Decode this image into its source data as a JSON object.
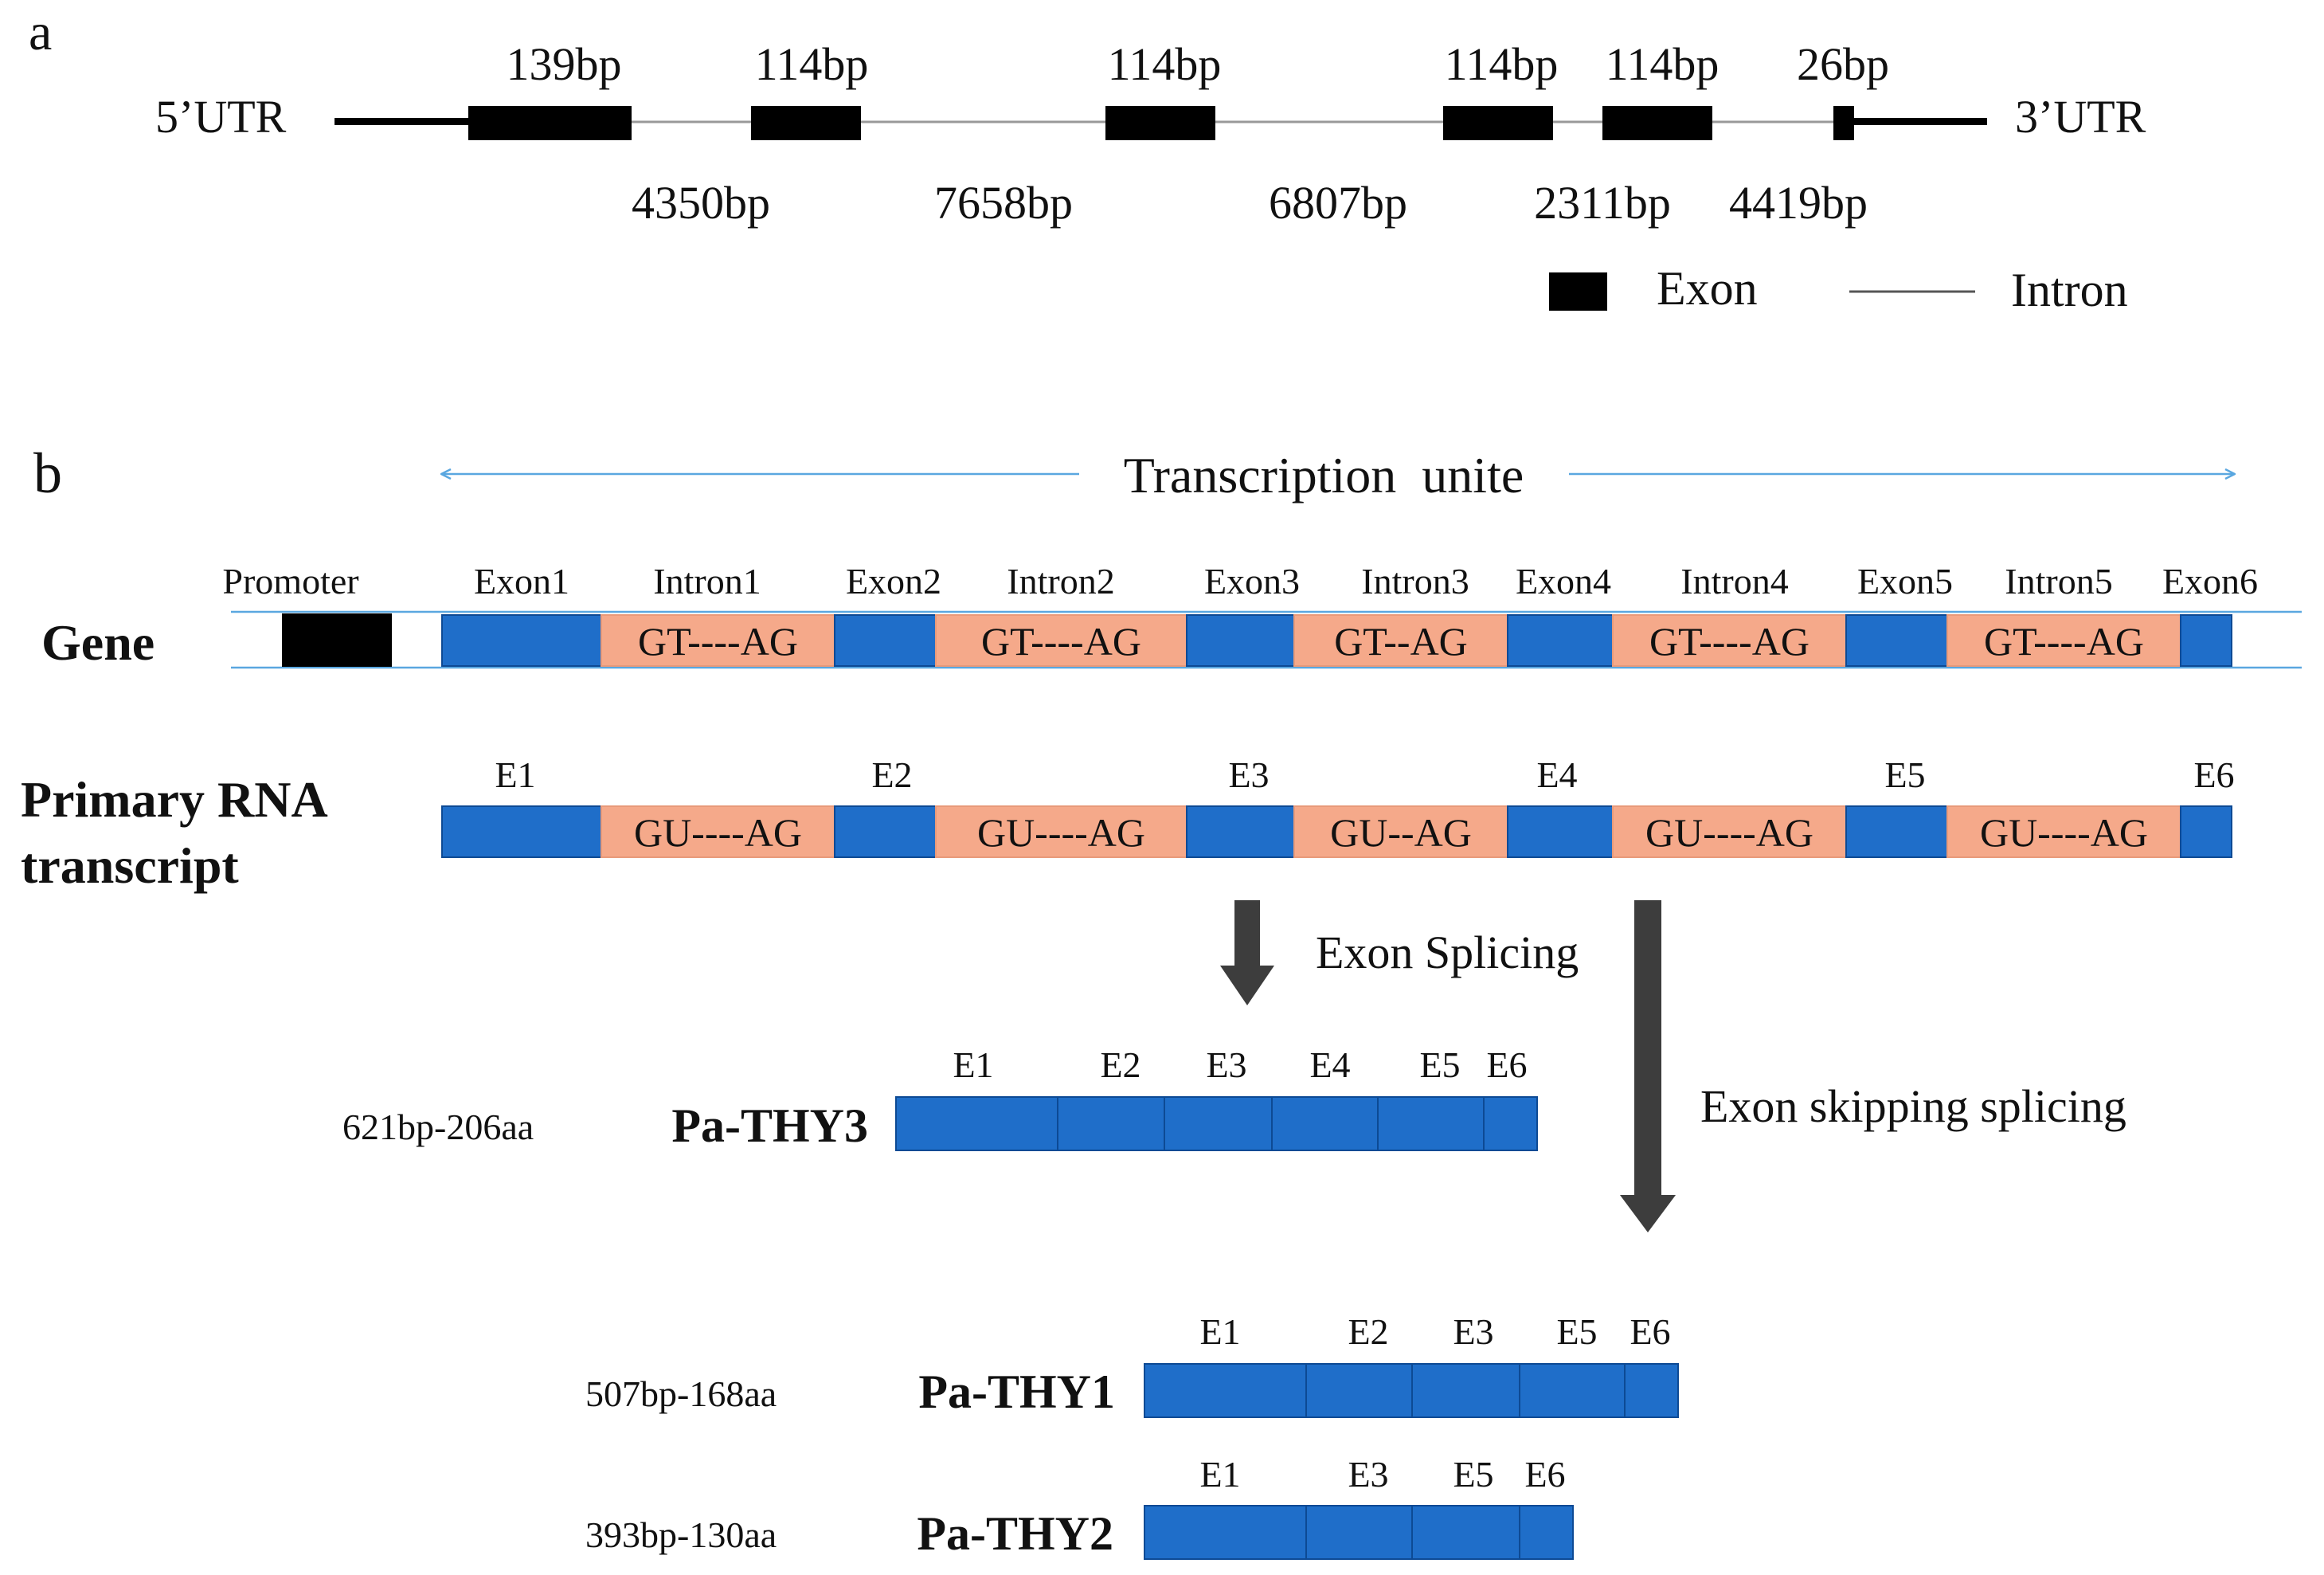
{
  "colors": {
    "exon_blue": "#1f6ec9",
    "exon_blue_border": "#0d4a94",
    "intron_salmon": "#f5a98a",
    "intron_border": "#e89a7a",
    "black": "#000000",
    "intron_line": "#999999",
    "gene_line": "#5aa7e0",
    "arrow_gray": "#3d3d3d"
  },
  "panel_a": {
    "label": "a",
    "utr5": "5’UTR",
    "utr3": "3’UTR",
    "exon_lengths": [
      "139bp",
      "114bp",
      "114bp",
      "114bp",
      "114bp",
      "26bp"
    ],
    "intron_lengths": [
      "4350bp",
      "7658bp",
      "6807bp",
      "2311bp",
      "4419bp"
    ],
    "legend": {
      "exon": "Exon",
      "intron": "Intron"
    }
  },
  "panel_b": {
    "label": "b",
    "transcription_unit": "Transcription  unite",
    "gene_label": "Gene",
    "promoter": "Promoter",
    "gene_exon_labels": [
      "Exon1",
      "Exon2",
      "Exon3",
      "Exon4",
      "Exon5",
      "Exon6"
    ],
    "gene_intron_labels": [
      "Intron1",
      "Intron2",
      "Intron3",
      "Intron4",
      "Intron5"
    ],
    "gene_intron_seqs": [
      "GT----AG",
      "GT----AG",
      "GT--AG",
      "GT----AG",
      "GT----AG"
    ],
    "rna_label_line1": "Primary RNA",
    "rna_label_line2": "transcript",
    "rna_exon_labels": [
      "E1",
      "E2",
      "E3",
      "E4",
      "E5",
      "E6"
    ],
    "rna_intron_seqs": [
      "GU----AG",
      "GU----AG",
      "GU--AG",
      "GU----AG",
      "GU----AG"
    ],
    "exon_splicing": "Exon Splicing",
    "exon_skipping": "Exon skipping splicing",
    "isoforms": [
      {
        "name": "Pa-THY3",
        "size": "621bp-206aa",
        "exons": [
          "E1",
          "E2",
          "E3",
          "E4",
          "E5",
          "E6"
        ]
      },
      {
        "name": "Pa-THY1",
        "size": "507bp-168aa",
        "exons": [
          "E1",
          "E2",
          "E3",
          "E5",
          "E6"
        ]
      },
      {
        "name": "Pa-THY2",
        "size": "393bp-130aa",
        "exons": [
          "E1",
          "E3",
          "E5",
          "E6"
        ]
      }
    ]
  }
}
